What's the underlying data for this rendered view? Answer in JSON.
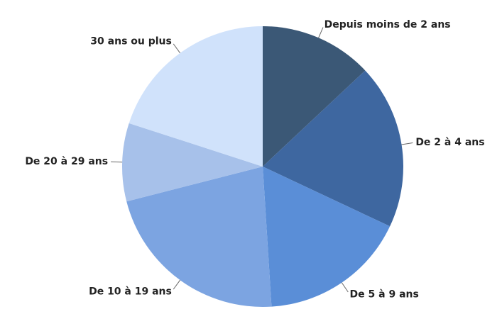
{
  "chart_data": {
    "type": "pie",
    "categories": [
      "Depuis moins de 2 ans",
      "De 2 à 4 ans",
      "De 5 à 9 ans",
      "De 10 à 19 ans",
      "De 20 à 29 ans",
      "30 ans ou plus"
    ],
    "values": [
      13,
      19,
      17,
      22,
      9,
      20
    ],
    "colors": [
      "#3b5876",
      "#3e67a0",
      "#5a8ed7",
      "#7ca4e1",
      "#a7c1ea",
      "#d0e2fb"
    ]
  }
}
